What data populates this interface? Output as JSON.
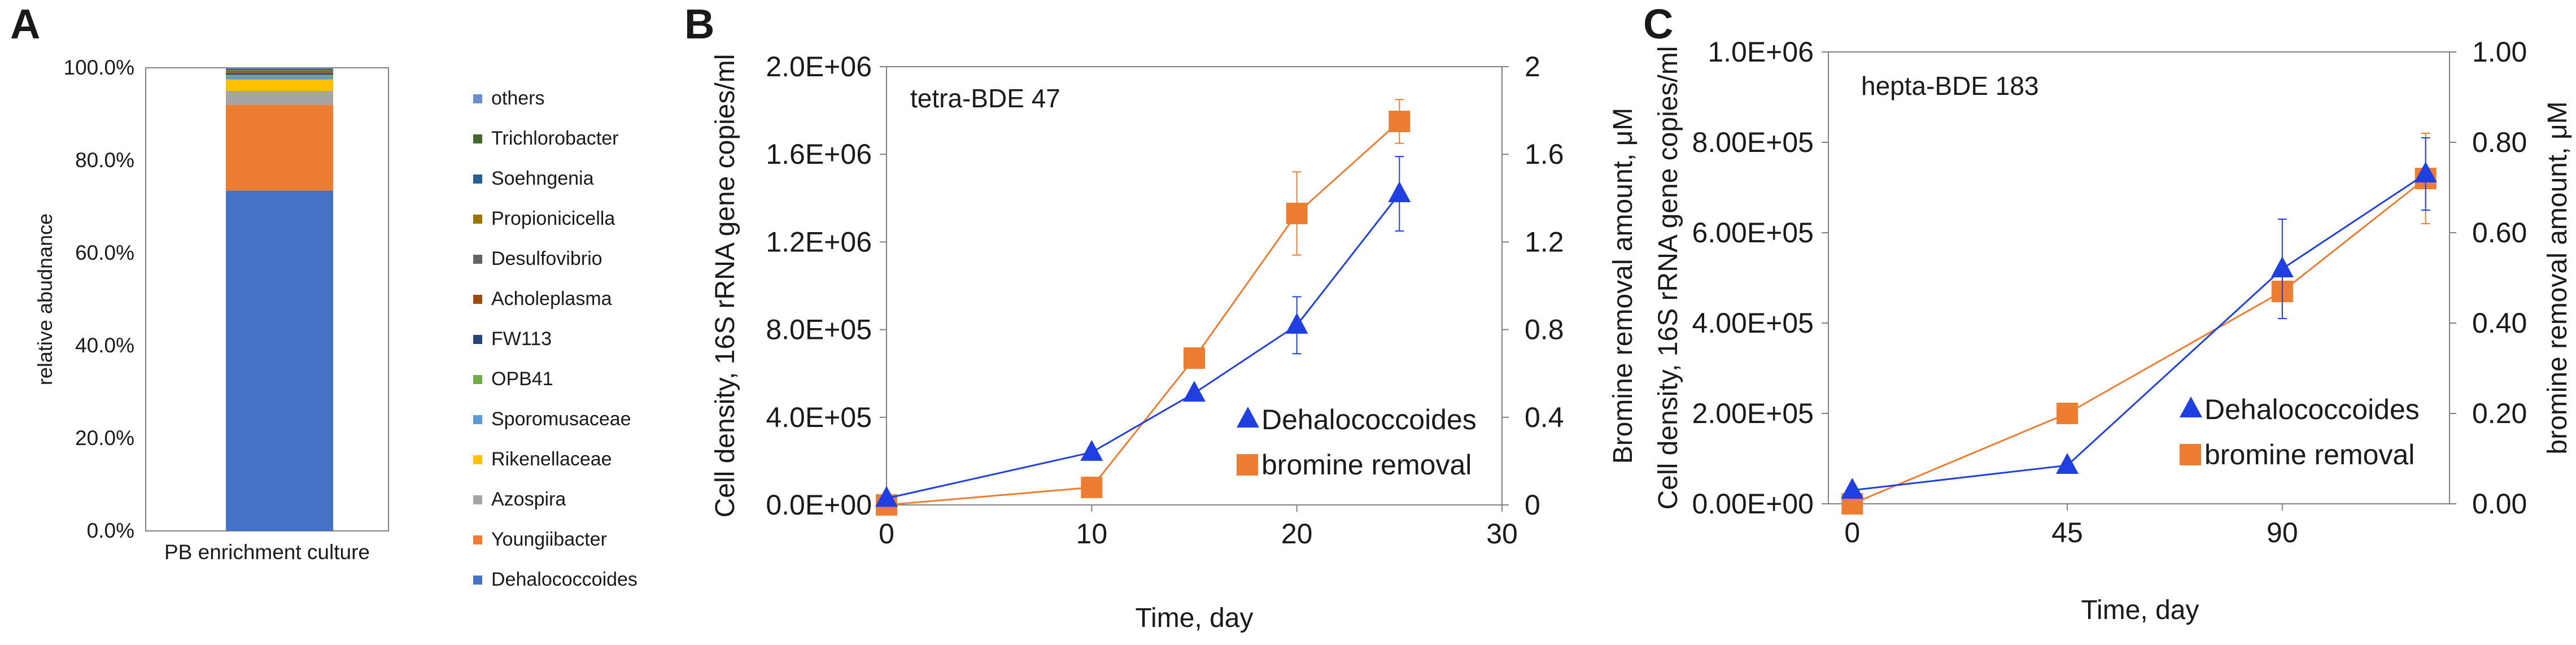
{
  "colors": {
    "blue": "#4472c4",
    "orange": "#ed7d31",
    "line_blue": "#1f3fe0",
    "tri_blue": "#1f3fe0",
    "sq_orange": "#ed7d31",
    "axis": "#7f7f7f"
  },
  "chart_data": [
    {
      "panel": "A",
      "type": "bar",
      "stacked": true,
      "title": "",
      "xlabel": "",
      "ylabel": "relative abudnance",
      "categories": [
        "PB enrichment culture"
      ],
      "ylim": [
        0,
        100
      ],
      "yticks": [
        "0.0%",
        "20.0%",
        "40.0%",
        "60.0%",
        "80.0%",
        "100.0%"
      ],
      "legend": "right",
      "series": [
        {
          "name": "Dehalococcoides",
          "values": [
            73.5
          ],
          "color": "#4472c4"
        },
        {
          "name": "Youngiibacter",
          "values": [
            18.5
          ],
          "color": "#ed7d31"
        },
        {
          "name": "Azospira",
          "values": [
            3.0
          ],
          "color": "#a5a5a5"
        },
        {
          "name": "Rikenellaceae",
          "values": [
            2.5
          ],
          "color": "#ffc000"
        },
        {
          "name": "Sporomusaceae",
          "values": [
            0.6
          ],
          "color": "#5b9bd5"
        },
        {
          "name": "OPB41",
          "values": [
            0.4
          ],
          "color": "#70ad47"
        },
        {
          "name": "FW113",
          "values": [
            0.3
          ],
          "color": "#264478"
        },
        {
          "name": "Acholeplasma",
          "values": [
            0.2
          ],
          "color": "#9e480e"
        },
        {
          "name": "Desulfovibrio",
          "values": [
            0.3
          ],
          "color": "#636363"
        },
        {
          "name": "Propionicicella",
          "values": [
            0.2
          ],
          "color": "#997300"
        },
        {
          "name": "Soehngenia",
          "values": [
            0.2
          ],
          "color": "#255e91"
        },
        {
          "name": "Trichlorobacter",
          "values": [
            0.1
          ],
          "color": "#43682b"
        },
        {
          "name": "others",
          "values": [
            0.2
          ],
          "color": "#698ed0"
        }
      ],
      "legend_order": [
        "others",
        "Trichlorobacter",
        "Soehngenia",
        "Propionicicella",
        "Desulfovibrio",
        "Acholeplasma",
        "FW113",
        "OPB41",
        "Sporomusaceae",
        "Rikenellaceae",
        "Azospira",
        "Youngiibacter",
        "Dehalococcoides"
      ]
    },
    {
      "panel": "B",
      "type": "line",
      "title": "tetra-BDE 47",
      "xlabel": "Time, day",
      "ylabel": "Cell density, 16S rRNA gene copies/ml",
      "y2label": "Bromine removal amount, μM",
      "xlim": [
        0,
        30
      ],
      "xticks": [
        "0",
        "10",
        "20",
        "30"
      ],
      "ylim": [
        0,
        2000000
      ],
      "yticks": [
        "0.0E+00",
        "4.0E+05",
        "8.0E+05",
        "1.2E+06",
        "1.6E+06",
        "2.0E+06"
      ],
      "y2lim": [
        0,
        2
      ],
      "y2ticks": [
        "0",
        "0.4",
        "0.8",
        "1.2",
        "1.6",
        "2"
      ],
      "legend": "bottom-right",
      "series": [
        {
          "name": "Dehalococcoides",
          "axis": "left",
          "marker": "triangle",
          "x": [
            0,
            10,
            15,
            20,
            25
          ],
          "y": [
            30000,
            240000,
            510000,
            820000,
            1420000
          ],
          "err": [
            0,
            0,
            0,
            130000,
            170000
          ]
        },
        {
          "name": "bromine removal",
          "axis": "right",
          "marker": "square",
          "x": [
            0,
            10,
            15,
            20,
            25
          ],
          "y": [
            0,
            0.08,
            0.67,
            1.33,
            1.75
          ],
          "err": [
            0,
            0,
            0,
            0.19,
            0.1
          ]
        }
      ]
    },
    {
      "panel": "C",
      "type": "line",
      "title": "hepta-BDE 183",
      "xlabel": "Time, day",
      "ylabel": "Cell density, 16S rRNA gene copies/ml",
      "y2label": "bromine removal amount, μM",
      "xlim": [
        -5,
        125
      ],
      "xticks": [
        "0",
        "45",
        "90"
      ],
      "xtick_values": [
        0,
        45,
        90
      ],
      "ylim": [
        0,
        1000000
      ],
      "yticks": [
        "0.00E+00",
        "2.00E+05",
        "4.00E+05",
        "6.00E+05",
        "8.00E+05",
        "1.0E+06"
      ],
      "y2lim": [
        0,
        1
      ],
      "y2ticks": [
        "0.00",
        "0.20",
        "0.40",
        "0.60",
        "0.80",
        "1.00"
      ],
      "legend": "bottom-right",
      "series": [
        {
          "name": "Dehalococcoides",
          "axis": "left",
          "marker": "triangle",
          "x": [
            0,
            45,
            90,
            120
          ],
          "y": [
            30000,
            85000,
            520000,
            730000
          ],
          "err": [
            0,
            0,
            110000,
            80000
          ]
        },
        {
          "name": "bromine removal",
          "axis": "right",
          "marker": "square",
          "x": [
            0,
            45,
            90,
            120
          ],
          "y": [
            0,
            0.2,
            0.47,
            0.72
          ],
          "err": [
            0,
            0.02,
            0.06,
            0.1
          ]
        }
      ]
    }
  ]
}
